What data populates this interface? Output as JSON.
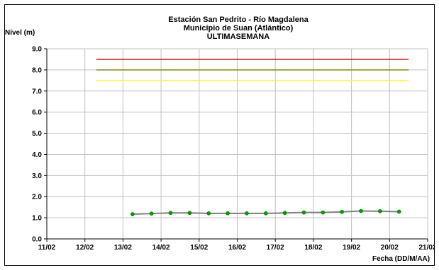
{
  "chart_data": {
    "type": "line",
    "title_lines": [
      "Estación San Pedrito - Río Magdalena",
      "Municipio de Suan (Atlántico)",
      "ULTIMASEMANA"
    ],
    "ylabel": "Nivel (m)",
    "xlabel": "Fecha (DD/M/AA)",
    "ylim": [
      0,
      9
    ],
    "yticks": [
      "0.0",
      "1.0",
      "2.0",
      "3.0",
      "4.0",
      "5.0",
      "6.0",
      "7.0",
      "8.0",
      "9.0"
    ],
    "xlim": [
      0,
      10
    ],
    "xtick_labels": [
      "11/02",
      "12/02",
      "13/02",
      "14/02",
      "15/02",
      "16/02",
      "17/02",
      "18/02",
      "19/02",
      "20/02",
      "21/02"
    ],
    "grid": true,
    "thresholds": [
      {
        "value": 8.5,
        "from": 1.3,
        "to": 9.5,
        "color": "#c00000"
      },
      {
        "value": 8.0,
        "from": 1.3,
        "to": 9.5,
        "color": "#808000"
      },
      {
        "value": 7.5,
        "from": 1.3,
        "to": 9.5,
        "color": "#ffff00"
      }
    ],
    "series": [
      {
        "line_color": "#808080",
        "marker_color": "#00a000",
        "x": [
          2.25,
          2.75,
          3.25,
          3.75,
          4.25,
          4.75,
          5.25,
          5.75,
          6.25,
          6.75,
          7.25,
          7.75,
          8.25,
          8.75,
          9.25
        ],
        "y": [
          1.17,
          1.2,
          1.23,
          1.23,
          1.21,
          1.21,
          1.21,
          1.21,
          1.23,
          1.25,
          1.25,
          1.28,
          1.32,
          1.31,
          1.29
        ]
      }
    ]
  }
}
